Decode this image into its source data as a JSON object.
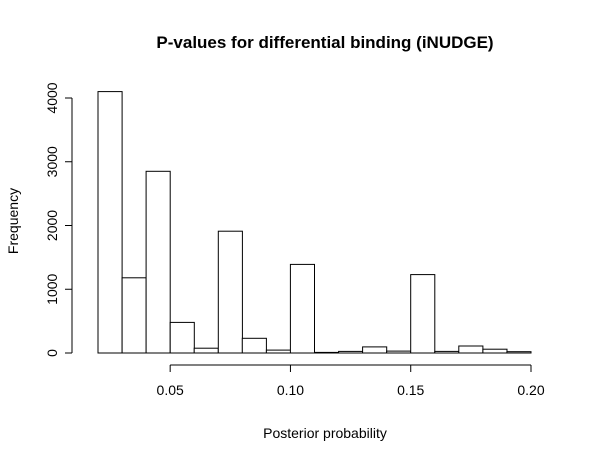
{
  "chart_data": {
    "type": "bar",
    "title": "P-values for differential binding (iNUDGE)",
    "xlabel": "Posterior probability",
    "ylabel": "Frequency",
    "xlim": [
      0.02,
      0.21
    ],
    "ylim": [
      0,
      4100
    ],
    "xticks": [
      0.05,
      0.1,
      0.15,
      0.2
    ],
    "xtick_labels": [
      "0.05",
      "0.10",
      "0.15",
      "0.20"
    ],
    "yticks": [
      0,
      1000,
      2000,
      3000,
      4000
    ],
    "ytick_labels": [
      "0",
      "1000",
      "2000",
      "3000",
      "4000"
    ],
    "bins": [
      {
        "start": 0.02,
        "end": 0.03,
        "value": 4100
      },
      {
        "start": 0.03,
        "end": 0.04,
        "value": 1180
      },
      {
        "start": 0.04,
        "end": 0.05,
        "value": 2850
      },
      {
        "start": 0.05,
        "end": 0.06,
        "value": 480
      },
      {
        "start": 0.06,
        "end": 0.07,
        "value": 75
      },
      {
        "start": 0.07,
        "end": 0.08,
        "value": 1910
      },
      {
        "start": 0.08,
        "end": 0.09,
        "value": 230
      },
      {
        "start": 0.09,
        "end": 0.1,
        "value": 45
      },
      {
        "start": 0.1,
        "end": 0.11,
        "value": 1390
      },
      {
        "start": 0.11,
        "end": 0.12,
        "value": 10
      },
      {
        "start": 0.12,
        "end": 0.13,
        "value": 25
      },
      {
        "start": 0.13,
        "end": 0.14,
        "value": 95
      },
      {
        "start": 0.14,
        "end": 0.15,
        "value": 30
      },
      {
        "start": 0.15,
        "end": 0.16,
        "value": 1230
      },
      {
        "start": 0.16,
        "end": 0.17,
        "value": 25
      },
      {
        "start": 0.17,
        "end": 0.18,
        "value": 110
      },
      {
        "start": 0.18,
        "end": 0.19,
        "value": 60
      },
      {
        "start": 0.19,
        "end": 0.2,
        "value": 20
      }
    ],
    "bar_fill": "#ffffff",
    "bar_stroke": "#000000",
    "grid": false,
    "legend": "none"
  }
}
